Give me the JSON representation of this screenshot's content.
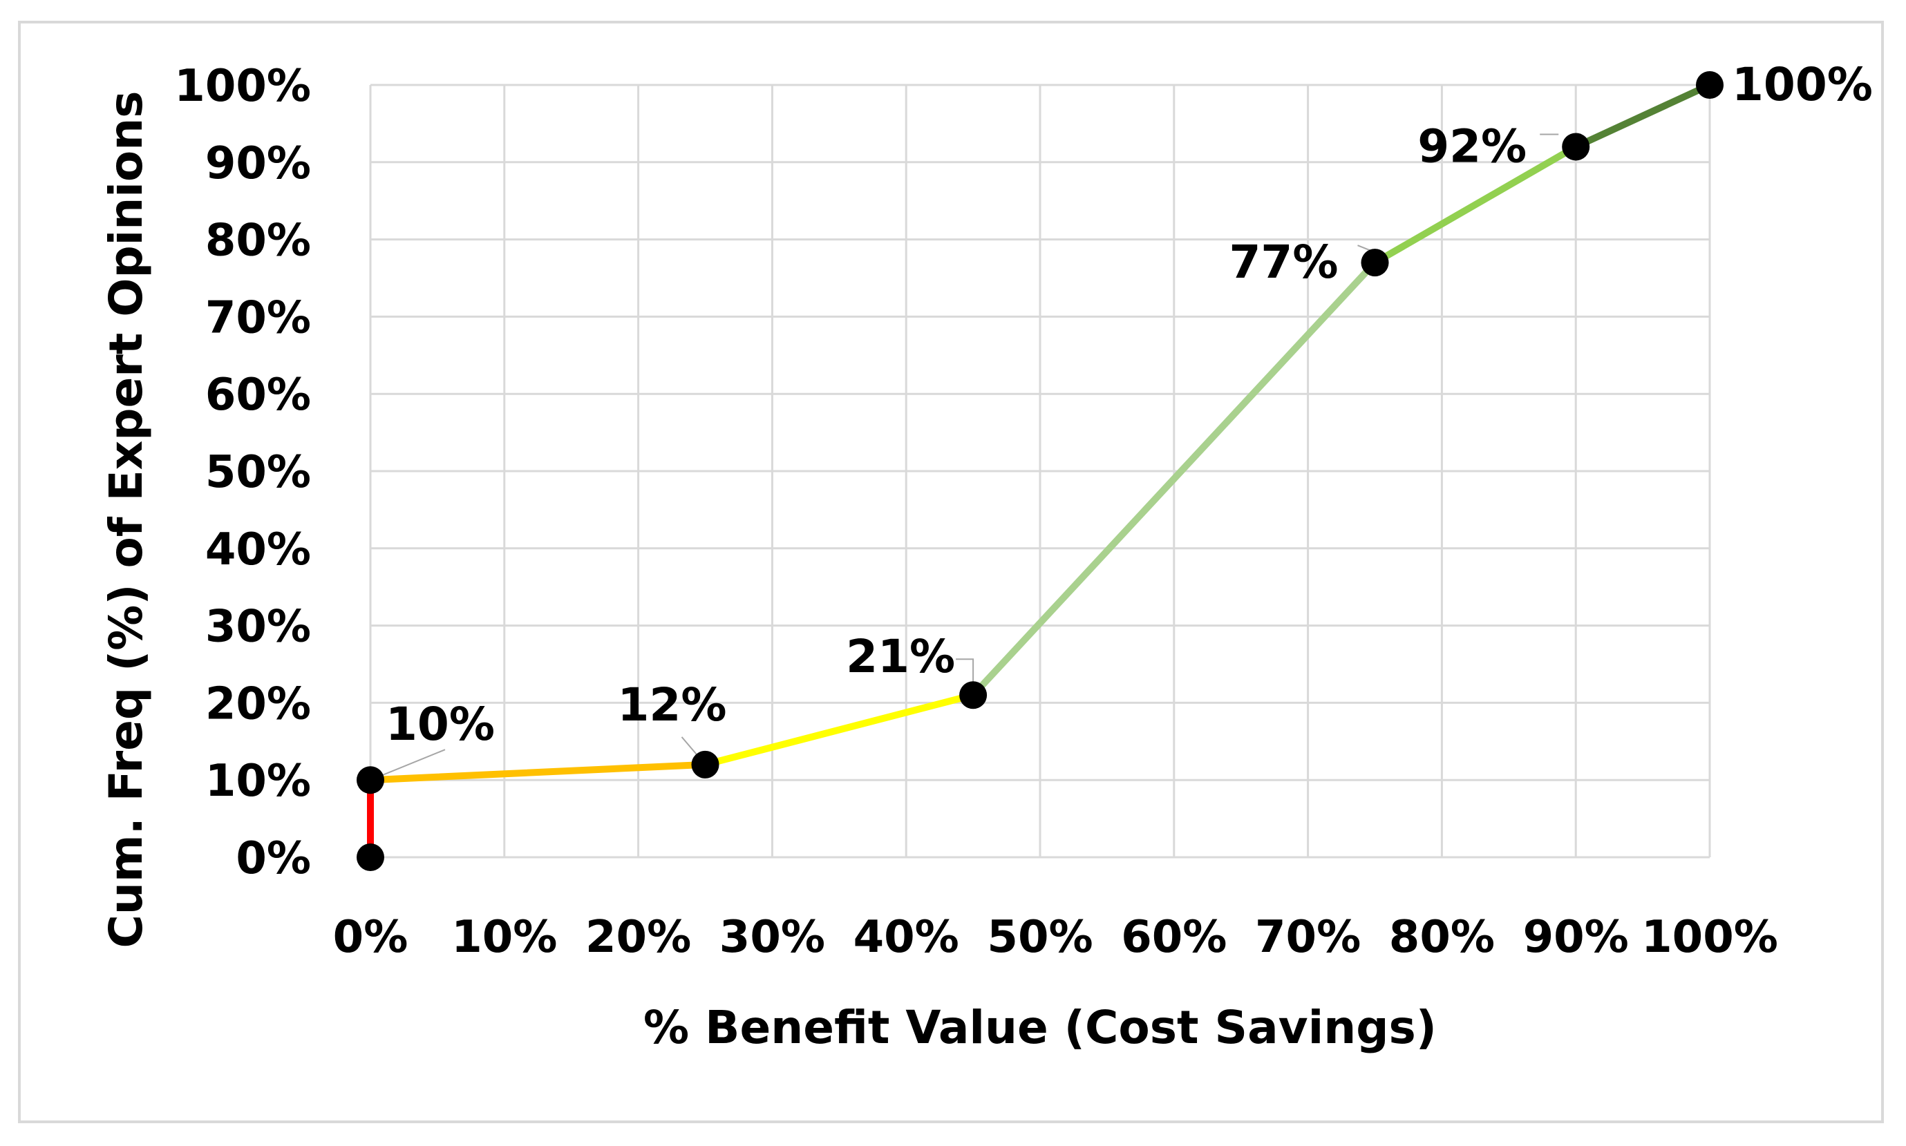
{
  "chart_data": {
    "type": "line",
    "title": "",
    "xlabel": "% Benefit Value (Cost Savings)",
    "ylabel": "Cum. Freq (%) of Expert Opinions",
    "xlim": [
      0,
      100
    ],
    "ylim": [
      0,
      100
    ],
    "x_ticks": [
      "0%",
      "10%",
      "20%",
      "30%",
      "40%",
      "50%",
      "60%",
      "70%",
      "80%",
      "90%",
      "100%"
    ],
    "y_ticks": [
      "0%",
      "10%",
      "20%",
      "30%",
      "40%",
      "50%",
      "60%",
      "70%",
      "80%",
      "90%",
      "100%"
    ],
    "grid": true,
    "legend": "none",
    "points": [
      {
        "x": 0,
        "y": 0,
        "label": ""
      },
      {
        "x": 0,
        "y": 10,
        "label": "10%"
      },
      {
        "x": 25,
        "y": 12,
        "label": "12%"
      },
      {
        "x": 45,
        "y": 21,
        "label": "21%"
      },
      {
        "x": 75,
        "y": 77,
        "label": "77%"
      },
      {
        "x": 90,
        "y": 92,
        "label": "92%"
      },
      {
        "x": 100,
        "y": 100,
        "label": "100%"
      }
    ],
    "segment_colors": [
      "#ff0000",
      "#ffc000",
      "#ffff00",
      "#a9d18e",
      "#92d050",
      "#548235"
    ],
    "marker_color": "#000000",
    "grid_color": "#d9d9d9"
  }
}
